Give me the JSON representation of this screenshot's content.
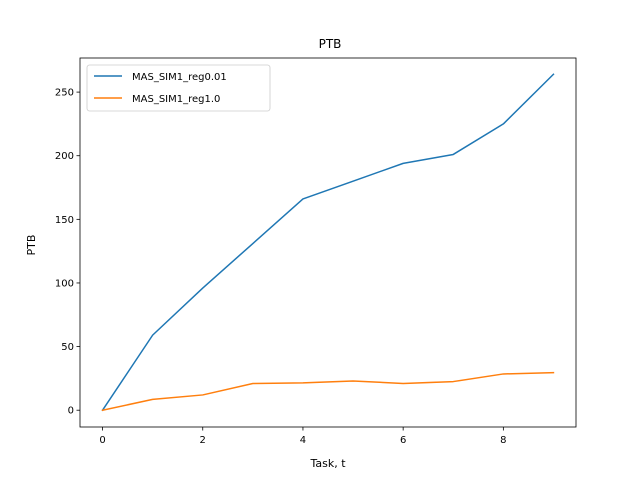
{
  "chart_data": {
    "type": "line",
    "title": "PTB",
    "xlabel": "Task, t",
    "ylabel": "PTB",
    "xlim": [
      -0.45,
      9.45
    ],
    "ylim": [
      -13.2,
      276.8
    ],
    "xticks": [
      0,
      2,
      4,
      6,
      8
    ],
    "yticks": [
      0,
      50,
      100,
      150,
      200,
      250
    ],
    "grid": false,
    "legend_position": "upper-left",
    "x": [
      0,
      1,
      2,
      3,
      4,
      5,
      6,
      7,
      8,
      9
    ],
    "series": [
      {
        "name": "MAS_SIM1_reg0.01",
        "color": "#1f77b4",
        "values": [
          0,
          59,
          96,
          131,
          166,
          180,
          194,
          201,
          225,
          264
        ]
      },
      {
        "name": "MAS_SIM1_reg1.0",
        "color": "#ff7f0e",
        "values": [
          0,
          8.5,
          12,
          21,
          21.5,
          23,
          21,
          22.5,
          28.5,
          29.5
        ]
      }
    ]
  }
}
